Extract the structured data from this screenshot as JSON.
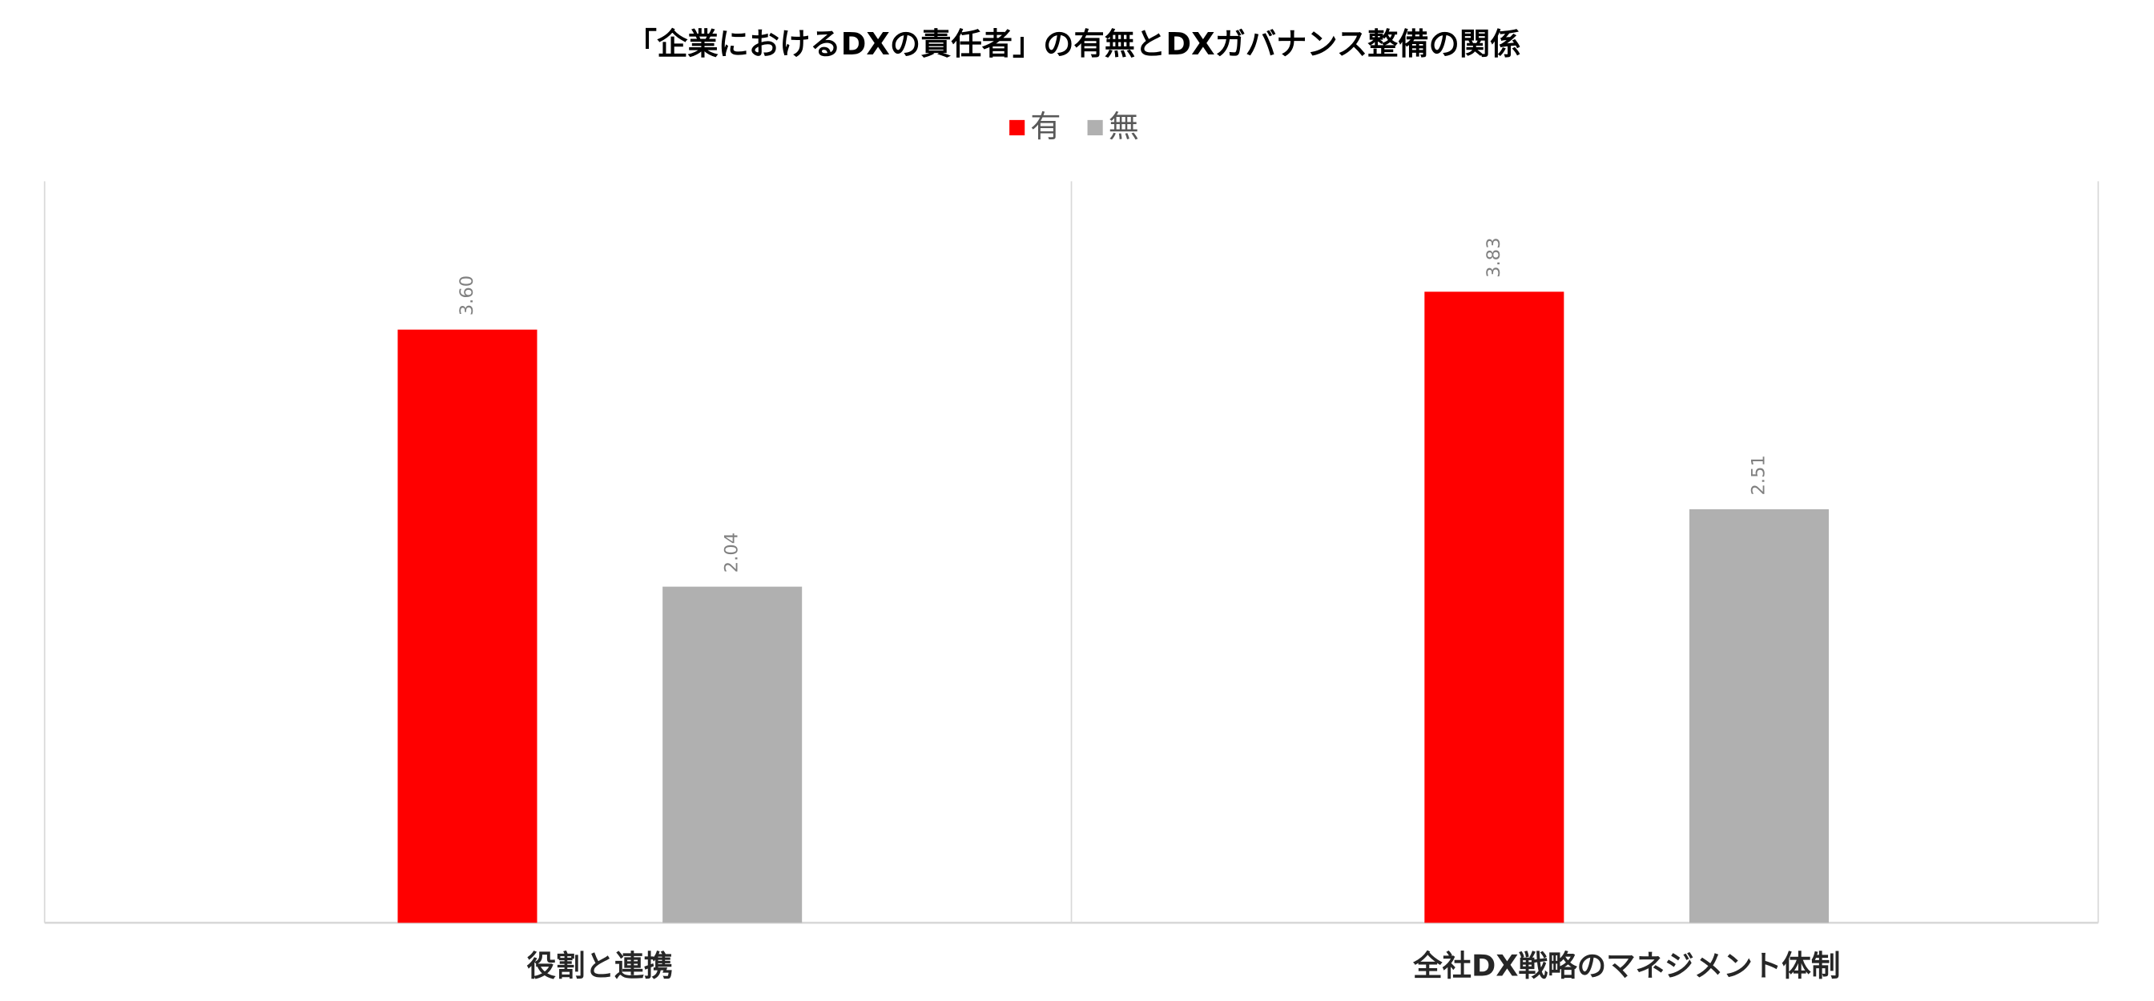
{
  "chart_data": {
    "type": "bar",
    "title": "「企業におけるDXの責任者」の有無とDXガバナンス整備の関係",
    "categories": [
      "役割と連携",
      "全社DX戦略のマネジメント体制"
    ],
    "series": [
      {
        "name": "有",
        "color": "#ff0000",
        "values": [
          3.6,
          3.83
        ],
        "value_labels": [
          "3.60",
          "3.83"
        ]
      },
      {
        "name": "無",
        "color": "#b0b0b0",
        "values": [
          2.04,
          2.51
        ],
        "value_labels": [
          "2.04",
          "2.51"
        ]
      }
    ],
    "ylim": [
      0,
      4.5
    ],
    "legend": "top"
  }
}
